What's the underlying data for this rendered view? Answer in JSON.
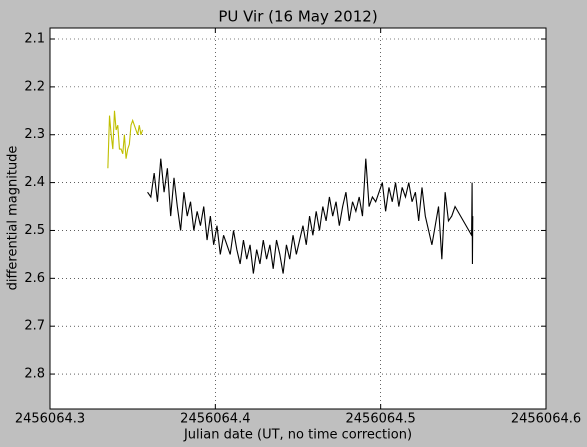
{
  "chart_data": {
    "type": "line",
    "title": "PU Vir (16 May 2012)",
    "x_label": "Julian date (UT, no time correction)",
    "y_label": "differential magnitude",
    "xlim": [
      2456064.3,
      2456064.6
    ],
    "xticks": [
      2456064.3,
      2456064.4,
      2456064.5,
      2456064.6
    ],
    "ylim": [
      2.077,
      2.873
    ],
    "yticks": [
      2.1,
      2.2,
      2.3,
      2.4,
      2.5,
      2.6,
      2.7,
      2.8
    ],
    "y_inverted": true,
    "grid": true,
    "series": [
      {
        "color": "#bfbf00",
        "x": [
          2456064.335,
          2456064.336,
          2456064.337,
          2456064.338,
          2456064.339,
          2456064.34,
          2456064.341,
          2456064.342,
          2456064.343,
          2456064.344,
          2456064.345,
          2456064.346,
          2456064.347,
          2456064.348,
          2456064.349,
          2456064.35,
          2456064.351,
          2456064.352,
          2456064.353,
          2456064.354,
          2456064.355,
          2456064.356
        ],
        "values": [
          2.37,
          2.26,
          2.3,
          2.33,
          2.25,
          2.29,
          2.28,
          2.33,
          2.33,
          2.34,
          2.3,
          2.35,
          2.33,
          2.32,
          2.28,
          2.27,
          2.28,
          2.29,
          2.3,
          2.28,
          2.3,
          2.29
        ]
      },
      {
        "color": "#000000",
        "x": [
          2456064.359,
          2456064.361,
          2456064.363,
          2456064.365,
          2456064.367,
          2456064.369,
          2456064.371,
          2456064.373,
          2456064.375,
          2456064.377,
          2456064.379,
          2456064.381,
          2456064.383,
          2456064.385,
          2456064.387,
          2456064.389,
          2456064.391,
          2456064.393,
          2456064.395,
          2456064.397,
          2456064.399,
          2456064.401,
          2456064.403,
          2456064.405,
          2456064.407,
          2456064.409,
          2456064.411,
          2456064.413,
          2456064.415,
          2456064.417,
          2456064.419,
          2456064.421,
          2456064.423,
          2456064.425,
          2456064.427,
          2456064.429,
          2456064.431,
          2456064.433,
          2456064.435,
          2456064.437,
          2456064.439,
          2456064.441,
          2456064.443,
          2456064.445,
          2456064.447,
          2456064.449,
          2456064.451,
          2456064.453,
          2456064.455,
          2456064.457,
          2456064.459,
          2456064.461,
          2456064.463,
          2456064.465,
          2456064.467,
          2456064.469,
          2456064.471,
          2456064.473,
          2456064.475,
          2456064.477,
          2456064.479,
          2456064.481,
          2456064.483,
          2456064.485,
          2456064.487,
          2456064.489,
          2456064.491,
          2456064.493,
          2456064.495,
          2456064.497,
          2456064.499,
          2456064.501,
          2456064.503,
          2456064.505,
          2456064.507,
          2456064.509,
          2456064.511,
          2456064.513,
          2456064.515,
          2456064.517,
          2456064.519,
          2456064.521,
          2456064.523,
          2456064.525,
          2456064.527,
          2456064.529,
          2456064.531,
          2456064.533,
          2456064.535,
          2456064.537,
          2456064.539,
          2456064.541,
          2456064.543,
          2456064.545,
          2456064.555,
          2456064.5553,
          2456064.5555,
          2456064.5557
        ],
        "values": [
          2.42,
          2.43,
          2.38,
          2.44,
          2.35,
          2.42,
          2.37,
          2.47,
          2.39,
          2.45,
          2.5,
          2.42,
          2.47,
          2.44,
          2.5,
          2.46,
          2.49,
          2.45,
          2.52,
          2.47,
          2.53,
          2.49,
          2.55,
          2.51,
          2.53,
          2.55,
          2.5,
          2.54,
          2.57,
          2.52,
          2.56,
          2.53,
          2.59,
          2.54,
          2.57,
          2.52,
          2.56,
          2.53,
          2.58,
          2.52,
          2.55,
          2.59,
          2.53,
          2.56,
          2.51,
          2.55,
          2.52,
          2.49,
          2.53,
          2.47,
          2.51,
          2.46,
          2.5,
          2.45,
          2.48,
          2.43,
          2.47,
          2.44,
          2.49,
          2.45,
          2.42,
          2.48,
          2.44,
          2.46,
          2.43,
          2.47,
          2.35,
          2.45,
          2.43,
          2.44,
          2.42,
          2.4,
          2.46,
          2.41,
          2.44,
          2.4,
          2.45,
          2.41,
          2.43,
          2.4,
          2.44,
          2.42,
          2.48,
          2.41,
          2.47,
          2.5,
          2.53,
          2.49,
          2.45,
          2.56,
          2.42,
          2.48,
          2.47,
          2.45,
          2.51,
          2.4,
          2.57,
          2.47
        ]
      }
    ]
  }
}
